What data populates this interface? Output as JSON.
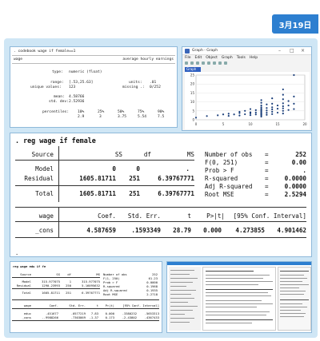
{
  "badge": {
    "date": "3月19日"
  },
  "codebook": {
    "command": ". codebook wage if female==1",
    "var_name": "wage",
    "var_label": "average hourly earnings",
    "type_label": "type:",
    "type_value": "numeric (float)",
    "range_label": "range:",
    "range_value": "[.53,25.63]",
    "units_label": "units:",
    "units_value": ".01",
    "unique_label": "unique values:",
    "unique_value": "123",
    "missing_label": "missing .:",
    "missing_value": "0/252",
    "mean_label": "mean:",
    "mean_value": "4.58766",
    "sd_label": "std. dev:",
    "sd_value": "2.52936",
    "pct_label": "percentiles:",
    "pct_headers": [
      "10%",
      "25%",
      "50%",
      "75%",
      "90%"
    ],
    "pct_values": [
      "2.9",
      "3",
      "3.75",
      "5.54",
      "7.5"
    ]
  },
  "graph_window": {
    "title": "Graph - Graph",
    "menu": [
      "File",
      "Edit",
      "Object",
      "Graph",
      "Tools",
      "Help"
    ],
    "tab": "Graph",
    "controls": [
      "–",
      "□",
      "×"
    ]
  },
  "regression": {
    "command": ". reg wage if female",
    "anova_headers": [
      "Source",
      "SS",
      "df",
      "MS"
    ],
    "rows": [
      {
        "source": "Model",
        "ss": "0",
        "df": "0",
        "ms": "."
      },
      {
        "source": "Residual",
        "ss": "1605.81711",
        "df": "251",
        "ms": "6.39767771"
      },
      {
        "source": "Total",
        "ss": "1605.81711",
        "df": "251",
        "ms": "6.39767771"
      }
    ],
    "stats": [
      {
        "label": "Number of obs",
        "eq": "=",
        "value": "252"
      },
      {
        "label": "F(0, 251)",
        "eq": "=",
        "value": "0.00"
      },
      {
        "label": "Prob > F",
        "eq": "=",
        "value": "."
      },
      {
        "label": "R-squared",
        "eq": "=",
        "value": "0.0000"
      },
      {
        "label": "Adj R-squared",
        "eq": "=",
        "value": "0.0000"
      },
      {
        "label": "Root MSE",
        "eq": "=",
        "value": "2.5294"
      }
    ],
    "coef_headers": [
      "wage",
      "Coef.",
      "Std. Err.",
      "t",
      "P>|t|",
      "[95% Conf. Interval]"
    ],
    "coef_row": {
      "var": "_cons",
      "coef": "4.587659",
      "se": ".1593349",
      "t": "28.79",
      "p": "0.000",
      "lo": "4.273855",
      "hi": "4.901462"
    },
    "prompt": "."
  },
  "small_reg": {
    "command": "reg wage edu if fe",
    "headers": [
      "Source",
      "SS",
      "df",
      "MS"
    ],
    "rows": [
      {
        "source": "Model",
        "ss": "315.977075",
        "df": "1",
        "ms": "315.977075"
      },
      {
        "source": "Residual",
        "ss": "1290.23993",
        "df": "250",
        "ms": "5.16095632"
      },
      {
        "source": "Total",
        "ss": "1605.81711",
        "df": "251",
        "ms": "6.39767771"
      }
    ],
    "stats": [
      {
        "label": "Number of obs",
        "value": "252"
      },
      {
        "label": "F(1, 250)",
        "value": "61.23"
      },
      {
        "label": "Prob > F",
        "value": "0.0000"
      },
      {
        "label": "R-squared",
        "value": "0.1968"
      },
      {
        "label": "Adj R-squared",
        "value": "0.1935"
      },
      {
        "label": "Root MSE",
        "value": "2.2718"
      }
    ],
    "coef_headers": [
      "wage",
      "Coef.",
      "Std. Err.",
      "t",
      "P>|t|",
      "[95% Conf. Interval]"
    ],
    "coef_rows": [
      {
        "var": "educ",
        "coef": ".451677",
        "se": ".0577219",
        "t": "7.83",
        "p": "0.000",
        "lo": ".3380232",
        "hi": ".5653313"
      },
      {
        "var": "_cons",
        "coef": "-.9988266",
        "se": ".7303869",
        "t": "-1.37",
        "p": "0.173",
        "lo": "-2.43802",
        "hi": ".4367433"
      }
    ]
  },
  "scatter_data": {
    "type": "scatter",
    "x": [
      0,
      2,
      4,
      5,
      6,
      6,
      7,
      8,
      8,
      8,
      9,
      9,
      10,
      10,
      10,
      10,
      11,
      11,
      11,
      12,
      12,
      12,
      12,
      12,
      12,
      12,
      12,
      12,
      12,
      12,
      12,
      12,
      13,
      13,
      13,
      13,
      13,
      14,
      14,
      14,
      14,
      14,
      14,
      15,
      15,
      15,
      16,
      16,
      16,
      16,
      16,
      16,
      16,
      16,
      17,
      17,
      17,
      18,
      18,
      18,
      18
    ],
    "y": [
      1.2,
      2.1,
      2.5,
      3.0,
      2.2,
      3.4,
      3.0,
      2.4,
      3.8,
      4.5,
      3.1,
      5.0,
      2.6,
      3.6,
      4.2,
      6.0,
      3.0,
      4.1,
      5.4,
      1.8,
      2.5,
      3.0,
      3.5,
      4.0,
      4.5,
      5.0,
      5.6,
      6.2,
      7.0,
      8.0,
      9.5,
      11.0,
      2.8,
      3.9,
      5.2,
      6.6,
      8.6,
      3.2,
      4.5,
      5.8,
      7.0,
      9.0,
      12.0,
      4.0,
      6.2,
      8.0,
      3.5,
      5.0,
      6.4,
      7.6,
      9.2,
      11.5,
      14.0,
      17.0,
      5.5,
      8.0,
      10.5,
      6.0,
      9.0,
      13.0,
      25.0
    ],
    "xlim": [
      0,
      20
    ],
    "ylim": [
      0,
      25
    ],
    "xticks": [
      "0",
      "5",
      "10",
      "15",
      "20"
    ],
    "yticks": [
      "0",
      "5",
      "10",
      "15",
      "20",
      "25"
    ]
  },
  "colors": {
    "accent": "#2d7fd0",
    "frame": "#cfe6f5",
    "marker": "#1a3e7a"
  }
}
